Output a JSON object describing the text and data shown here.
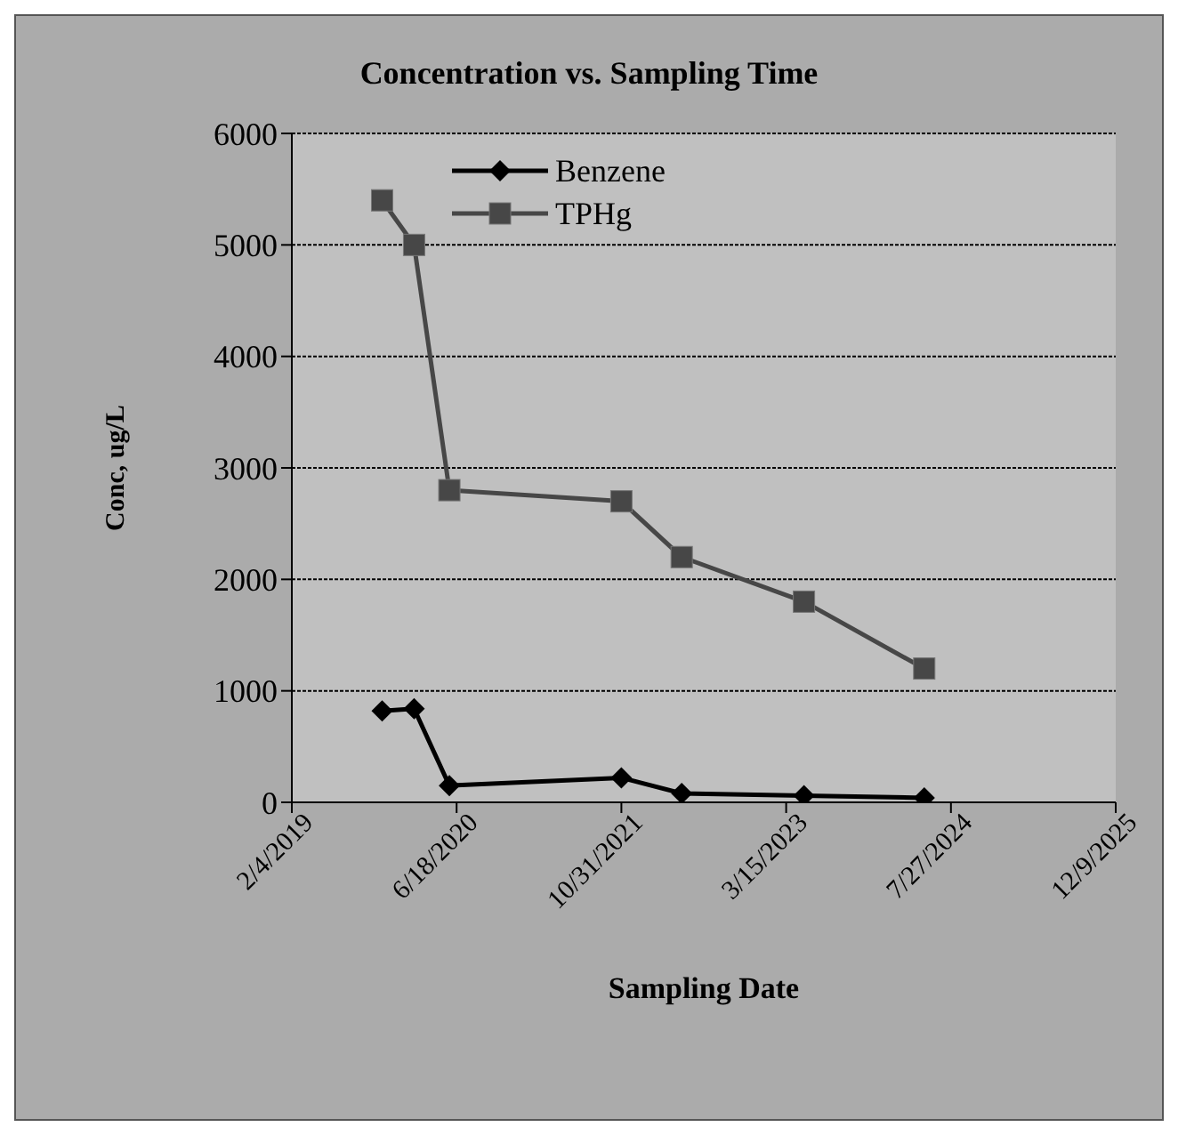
{
  "chart_data": {
    "type": "line",
    "title": "Concentration vs. Sampling Time",
    "xlabel": "Sampling Date",
    "ylabel": "Conc, ug/L",
    "x": [
      "2019-11-05",
      "2020-02-10",
      "2020-05-27",
      "2021-10-31",
      "2022-05-02",
      "2023-05-08",
      "2024-05-07"
    ],
    "series": [
      {
        "name": "Benzene",
        "color": "#000000",
        "marker": "diamond",
        "values": [
          820,
          840,
          150,
          220,
          80,
          60,
          40
        ]
      },
      {
        "name": "TPHg",
        "color": "#474747",
        "marker": "square",
        "values": [
          5400,
          5000,
          2800,
          2700,
          2200,
          1800,
          1200
        ]
      }
    ],
    "xlim": [
      "2019-02-04",
      "2025-12-09"
    ],
    "xticks": [
      {
        "value": "2019-02-04",
        "label": "2/4/2019"
      },
      {
        "value": "2020-06-18",
        "label": "6/18/2020"
      },
      {
        "value": "2021-10-31",
        "label": "10/31/2021"
      },
      {
        "value": "2023-03-15",
        "label": "3/15/2023"
      },
      {
        "value": "2024-07-27",
        "label": "7/27/2024"
      },
      {
        "value": "2025-12-09",
        "label": "12/9/2025"
      }
    ],
    "ylim": [
      0,
      6000
    ],
    "yticks": [
      0,
      1000,
      2000,
      3000,
      4000,
      5000,
      6000
    ],
    "grid": "y",
    "legend": "top left"
  }
}
